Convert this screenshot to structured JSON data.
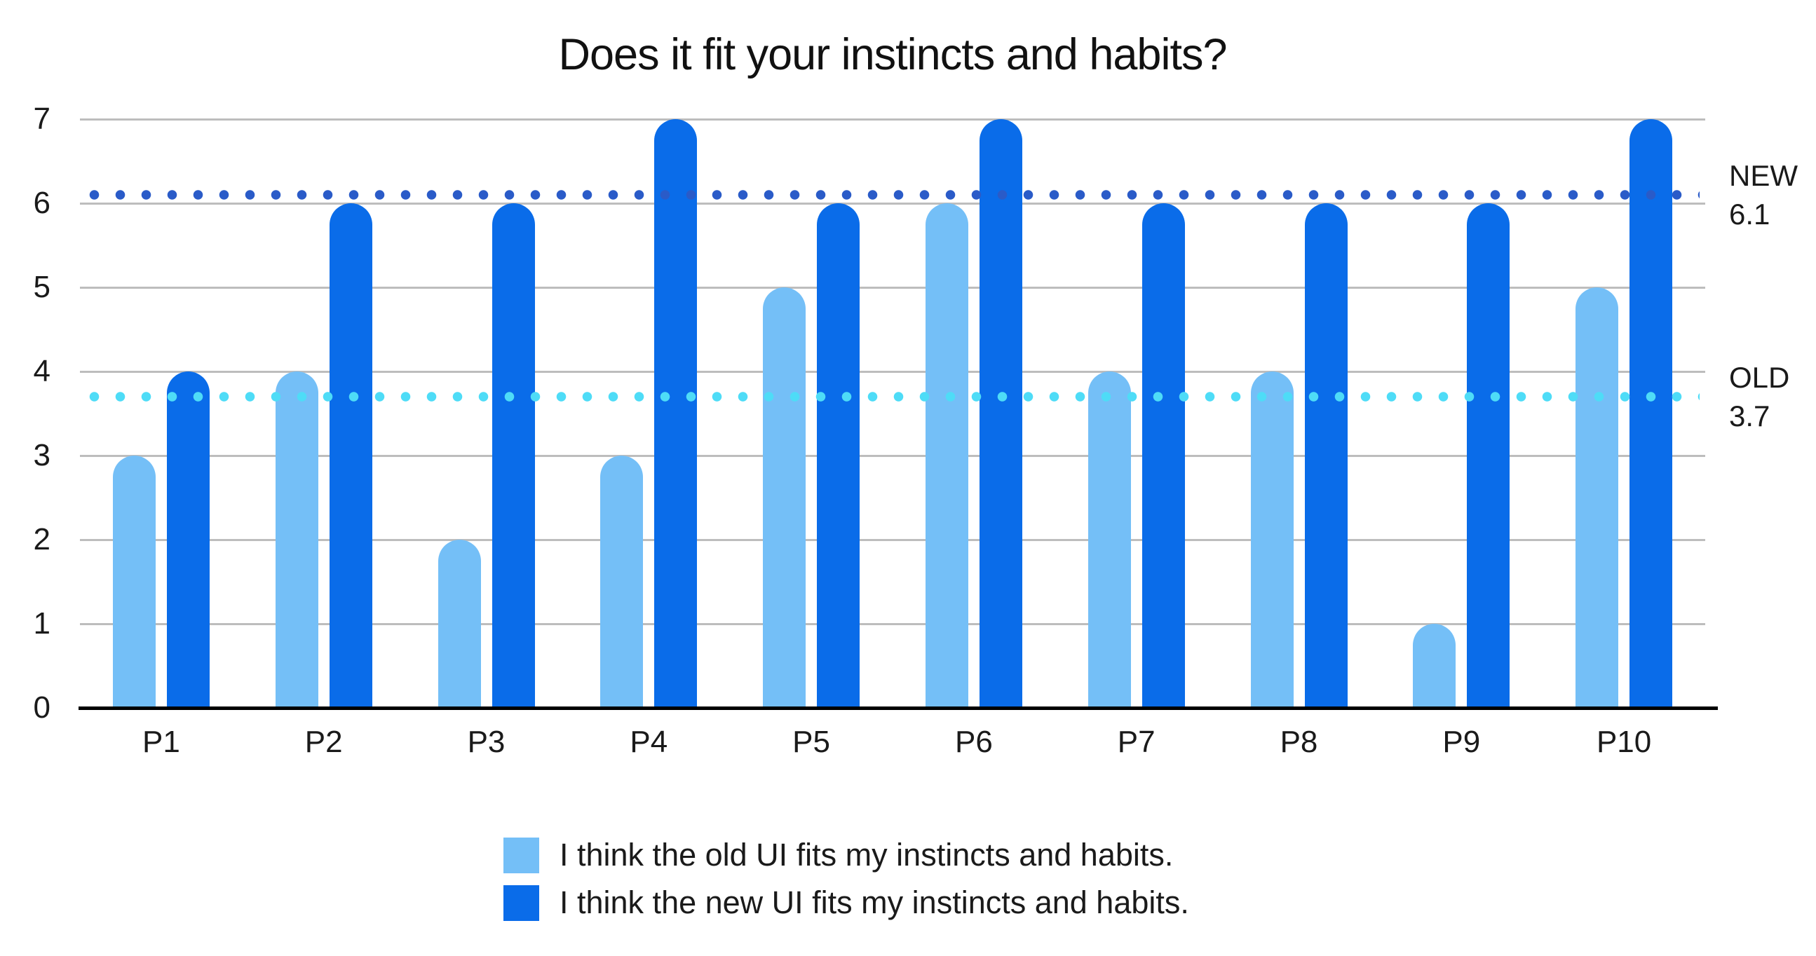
{
  "colors": {
    "old_series": "#74BFF7",
    "new_series": "#0A6CE9",
    "new_ref_dots": "#2A5BC8",
    "old_ref_dots": "#4EDCF7",
    "gridline": "#BDBDBD",
    "axis": "#000000",
    "text": "#1A1A1A"
  },
  "chart_data": {
    "type": "bar",
    "title": "Does it fit your instincts and habits?",
    "categories": [
      "P1",
      "P2",
      "P3",
      "P4",
      "P5",
      "P6",
      "P7",
      "P8",
      "P9",
      "P10"
    ],
    "series": [
      {
        "name": "I think the old UI fits my instincts and habits.",
        "color": "#74BFF7",
        "values": [
          3,
          4,
          2,
          3,
          5,
          6,
          4,
          4,
          1,
          5
        ]
      },
      {
        "name": "I think the new UI fits my instincts and habits.",
        "color": "#0A6CE9",
        "values": [
          4,
          6,
          6,
          7,
          6,
          7,
          6,
          6,
          6,
          7
        ]
      }
    ],
    "xlabel": "",
    "ylabel": "",
    "ylim": [
      0,
      7
    ],
    "yticks": [
      0,
      1,
      2,
      3,
      4,
      5,
      6,
      7
    ],
    "grid": true,
    "legend_position": "bottom",
    "reference_lines": [
      {
        "label": "NEW",
        "value": 6.1,
        "value_label": "6.1",
        "color": "#2A5BC8",
        "style": "dotted"
      },
      {
        "label": "OLD",
        "value": 3.7,
        "value_label": "3.7",
        "color": "#4EDCF7",
        "style": "dotted"
      }
    ]
  }
}
